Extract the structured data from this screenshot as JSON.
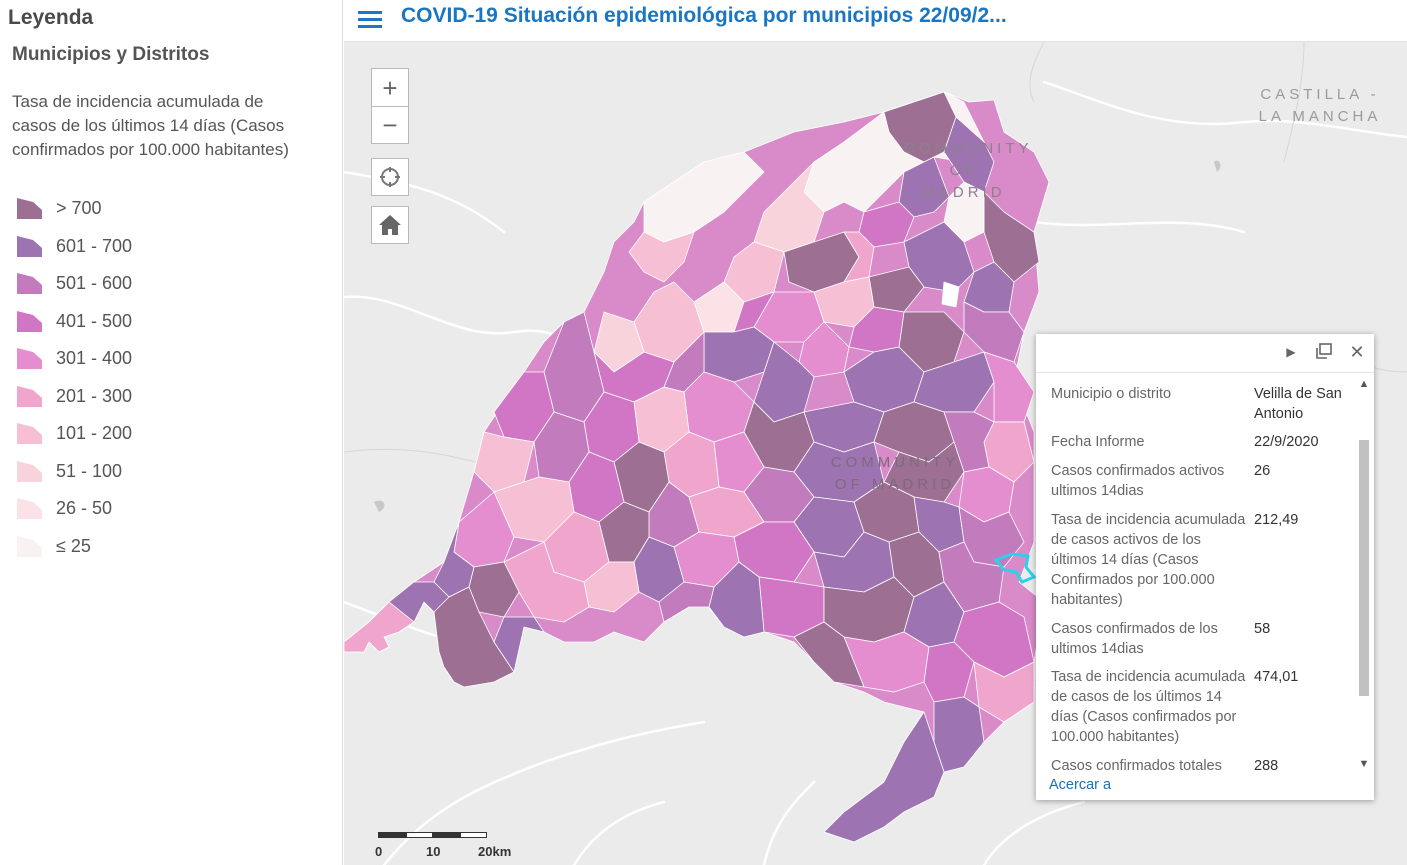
{
  "legend": {
    "title": "Leyenda",
    "layer_title": "Municipios y Distritos",
    "field_desc": "Tasa de incidencia acumulada de casos de los últimos 14 días (Casos confirmados por 100.000 habitantes)",
    "classes": [
      {
        "label": "> 700",
        "color": "#9c6f93"
      },
      {
        "label": "601 - 700",
        "color": "#9e73b2"
      },
      {
        "label": "501 - 600",
        "color": "#c27bbd"
      },
      {
        "label": "401 - 500",
        "color": "#d176c4"
      },
      {
        "label": "301 - 400",
        "color": "#e48ed0"
      },
      {
        "label": "201 - 300",
        "color": "#f0a5cd"
      },
      {
        "label": "101 - 200",
        "color": "#f6bfd4"
      },
      {
        "label": "51 - 100",
        "color": "#f9d3dc"
      },
      {
        "label": "26 - 50",
        "color": "#fbe2e6"
      },
      {
        "label": "≤ 25",
        "color": "#f8f2f2"
      }
    ]
  },
  "header": {
    "title": "COVID-19 Situación epidemiológica por municipios 22/09/2..."
  },
  "map": {
    "labels": {
      "castilla": "CASTILLA - LA MANCHA",
      "community_north": "COMMUNITY OF MADRID",
      "community_center": "COMMUNITY OF MADRID"
    },
    "controls": {
      "zoom_in": "+",
      "zoom_out": "−"
    },
    "scale": {
      "ticks": [
        "0",
        "10",
        "20km"
      ]
    }
  },
  "popup": {
    "rows": [
      {
        "key": "Municipio o distrito",
        "value": "Velilla de San Antonio"
      },
      {
        "key": "Fecha Informe",
        "value": "22/9/2020"
      },
      {
        "key": "Casos confirmados activos ultimos 14dias",
        "value": "26"
      },
      {
        "key": "Tasa de incidencia acumulada de casos activos de los últimos 14 días (Casos Confirmados por 100.000 habitantes)",
        "value": "212,49"
      },
      {
        "key": "Casos confirmados de los ultimos 14dias",
        "value": "58"
      },
      {
        "key": "Tasa de incidencia acumulada de casos de los últimos 14 días (Casos confirmados por 100.000 habitantes)",
        "value": "474,01"
      },
      {
        "key": "Casos confirmados totales",
        "value": "288"
      }
    ],
    "zoom_link": "Acercar a"
  }
}
